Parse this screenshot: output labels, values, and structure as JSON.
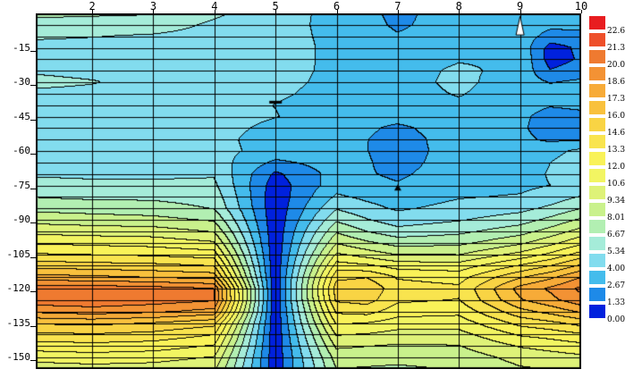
{
  "chart_data": {
    "type": "filled_contour_section",
    "title": "",
    "x_ticks": [
      "2",
      "3",
      "4",
      "5",
      "6",
      "7",
      "8",
      "9",
      "10"
    ],
    "x_tick_values": [
      2,
      3,
      4,
      5,
      6,
      7,
      8,
      9,
      10
    ],
    "y_ticks": [
      "-15",
      "-30",
      "-45",
      "-60",
      "-75",
      "-90",
      "-105",
      "-120",
      "-135",
      "-150"
    ],
    "y_tick_values": [
      -15,
      -30,
      -45,
      -60,
      -75,
      -90,
      -105,
      -120,
      -135,
      -150
    ],
    "x_range": [
      1.077,
      10
    ],
    "depth_range": [
      0,
      -155
    ],
    "level_step": 1.334118,
    "legend_labels": [
      "22.68",
      "21.35",
      "20.01",
      "18.68",
      "17.35",
      "16.01",
      "14.68",
      "13.34",
      "12.01",
      "10.67",
      "9.34",
      "8.01",
      "6.67",
      "5.34",
      "4.00",
      "2.67",
      "1.33",
      "0.00"
    ],
    "palette_low_to_high": [
      "#0021dd",
      "#1e8ae8",
      "#44bcec",
      "#82dcee",
      "#a5ecd9",
      "#b2efb2",
      "#c9f18c",
      "#def278",
      "#f2f562",
      "#f9f258",
      "#f9e44e",
      "#f9d444",
      "#f9c13d",
      "#f7ab38",
      "#f39234",
      "#ef7a30",
      "#ee4f2a",
      "#e81d20"
    ],
    "line_color": "#000000",
    "grid_x": [
      1.077,
      2,
      3,
      4,
      5,
      6,
      6.5,
      7,
      8,
      9,
      9.5,
      10
    ],
    "grid_depths": [
      0,
      -5,
      -10,
      -15,
      -20,
      -25,
      -30,
      -35,
      -40,
      -45,
      -50,
      -55,
      -60,
      -65,
      -70,
      -75,
      -80,
      -85,
      -90,
      -95,
      -100,
      -105,
      -110,
      -115,
      -120,
      -125,
      -130,
      -135,
      -140,
      -145,
      -150,
      -155
    ],
    "values": [
      [
        7.0,
        6.9,
        6.8,
        5.6,
        4.45,
        3.7,
        3.1,
        2.2,
        3.6,
        3.2,
        3.2,
        3.3
      ],
      [
        6.2,
        6.1,
        6.0,
        5.1,
        4.4,
        3.7,
        3.2,
        2.4,
        3.5,
        3.3,
        3.0,
        3.1
      ],
      [
        5.5,
        5.4,
        5.2,
        4.85,
        4.4,
        3.75,
        3.3,
        2.8,
        3.5,
        3.4,
        2.2,
        2.2
      ],
      [
        5.0,
        4.9,
        4.85,
        4.7,
        4.4,
        3.8,
        3.5,
        3.2,
        3.6,
        3.7,
        0.8,
        1.6
      ],
      [
        4.85,
        4.8,
        4.8,
        4.65,
        4.4,
        3.8,
        3.6,
        3.4,
        3.9,
        3.9,
        0.7,
        1.5
      ],
      [
        5.1,
        4.8,
        4.75,
        4.6,
        4.35,
        3.8,
        3.6,
        3.5,
        4.2,
        3.7,
        1.4,
        2.0
      ],
      [
        5.8,
        5.45,
        4.7,
        4.6,
        4.3,
        3.75,
        3.6,
        3.5,
        4.3,
        3.4,
        2.6,
        2.9
      ],
      [
        5.0,
        4.9,
        4.68,
        4.55,
        4.2,
        3.6,
        3.5,
        3.5,
        4.1,
        3.3,
        3.0,
        3.3
      ],
      [
        4.8,
        4.75,
        4.65,
        4.5,
        3.98,
        3.4,
        3.4,
        3.4,
        3.8,
        3.2,
        2.8,
        3.0
      ],
      [
        4.7,
        4.7,
        4.6,
        4.5,
        4.05,
        3.3,
        3.2,
        3.2,
        3.6,
        3.0,
        2.1,
        2.3
      ],
      [
        4.65,
        4.65,
        4.55,
        4.45,
        3.7,
        3.25,
        2.9,
        2.4,
        3.4,
        2.9,
        2.0,
        2.2
      ],
      [
        4.6,
        4.6,
        4.5,
        4.4,
        3.4,
        3.2,
        2.7,
        2.1,
        3.3,
        3.0,
        2.4,
        2.5
      ],
      [
        4.55,
        4.55,
        4.45,
        4.35,
        3.6,
        3.3,
        2.7,
        2.0,
        3.3,
        3.1,
        3.6,
        4.3
      ],
      [
        4.6,
        4.6,
        4.6,
        4.7,
        2.4,
        3.3,
        2.8,
        2.1,
        3.4,
        3.3,
        4.0,
        4.7
      ],
      [
        5.1,
        5.0,
        5.0,
        5.2,
        1.1,
        3.2,
        2.8,
        2.4,
        3.5,
        3.5,
        4.1,
        4.8
      ],
      [
        5.9,
        5.7,
        5.7,
        5.6,
        0.6,
        3.4,
        3.1,
        2.8,
        3.6,
        3.7,
        4.0,
        4.6
      ],
      [
        6.6,
        6.4,
        6.4,
        6.1,
        0.4,
        4.2,
        3.7,
        3.3,
        3.9,
        4.1,
        4.6,
        5.4
      ],
      [
        7.6,
        7.4,
        7.2,
        6.6,
        0.35,
        5.2,
        4.4,
        3.8,
        4.4,
        4.9,
        5.6,
        6.6
      ],
      [
        8.8,
        8.6,
        8.4,
        7.8,
        0.3,
        6.4,
        5.4,
        4.6,
        5.2,
        6.0,
        7.0,
        8.2
      ],
      [
        10.2,
        10.0,
        9.9,
        9.2,
        0.28,
        7.8,
        6.6,
        5.8,
        6.3,
        7.4,
        8.5,
        9.8
      ],
      [
        11.8,
        11.6,
        11.4,
        10.8,
        0.25,
        9.2,
        8.2,
        7.4,
        7.6,
        9.0,
        10.2,
        11.6
      ],
      [
        13.4,
        13.2,
        13.0,
        12.6,
        0.22,
        10.8,
        10.0,
        9.2,
        9.2,
        11.0,
        12.2,
        13.8
      ],
      [
        15.4,
        15.2,
        15.0,
        14.6,
        0.2,
        12.6,
        12.2,
        11.4,
        11.2,
        13.4,
        14.6,
        16.2
      ],
      [
        17.8,
        17.6,
        17.2,
        16.8,
        0.18,
        14.3,
        14.6,
        13.2,
        12.8,
        15.8,
        17.0,
        18.6
      ],
      [
        20.6,
        20.8,
        20.5,
        20.0,
        0.15,
        15.4,
        15.7,
        13.9,
        13.6,
        17.8,
        18.9,
        20.3
      ],
      [
        20.9,
        21.0,
        20.7,
        20.2,
        0.15,
        14.9,
        15.2,
        13.6,
        13.3,
        17.2,
        18.3,
        19.6
      ],
      [
        19.0,
        19.4,
        19.0,
        18.2,
        0.15,
        13.6,
        13.9,
        12.6,
        12.4,
        15.6,
        16.5,
        17.6
      ],
      [
        16.2,
        16.4,
        16.0,
        15.2,
        0.18,
        12.2,
        12.0,
        11.4,
        11.3,
        13.8,
        14.4,
        15.2
      ],
      [
        14.4,
        14.6,
        14.3,
        13.4,
        0.2,
        10.8,
        10.6,
        10.2,
        10.2,
        12.2,
        12.6,
        13.2
      ],
      [
        12.7,
        12.9,
        12.7,
        11.9,
        0.25,
        9.6,
        9.4,
        9.2,
        9.3,
        10.8,
        11.2,
        11.6
      ],
      [
        11.2,
        11.4,
        11.2,
        10.6,
        0.3,
        8.6,
        8.5,
        8.4,
        8.6,
        9.8,
        10.1,
        10.4
      ],
      [
        10.0,
        10.2,
        10.1,
        9.6,
        0.4,
        8.0,
        7.9,
        7.8,
        8.1,
        9.2,
        9.4,
        9.7
      ]
    ],
    "mesh": {
      "horizontal_every_m": 5,
      "vertical_at_stations": true
    },
    "markers": [
      {
        "name": "station-flag",
        "shape": "triangle-outline-white",
        "x": 9,
        "depth_top": -0.5,
        "depth_bottom": -5.5
      },
      {
        "name": "point-marker",
        "shape": "triangle-filled-black",
        "x": 7,
        "depth": -76
      },
      {
        "name": "tiny-contour-dash",
        "shape": "dash",
        "x": 5,
        "depth": -38.5
      }
    ]
  }
}
